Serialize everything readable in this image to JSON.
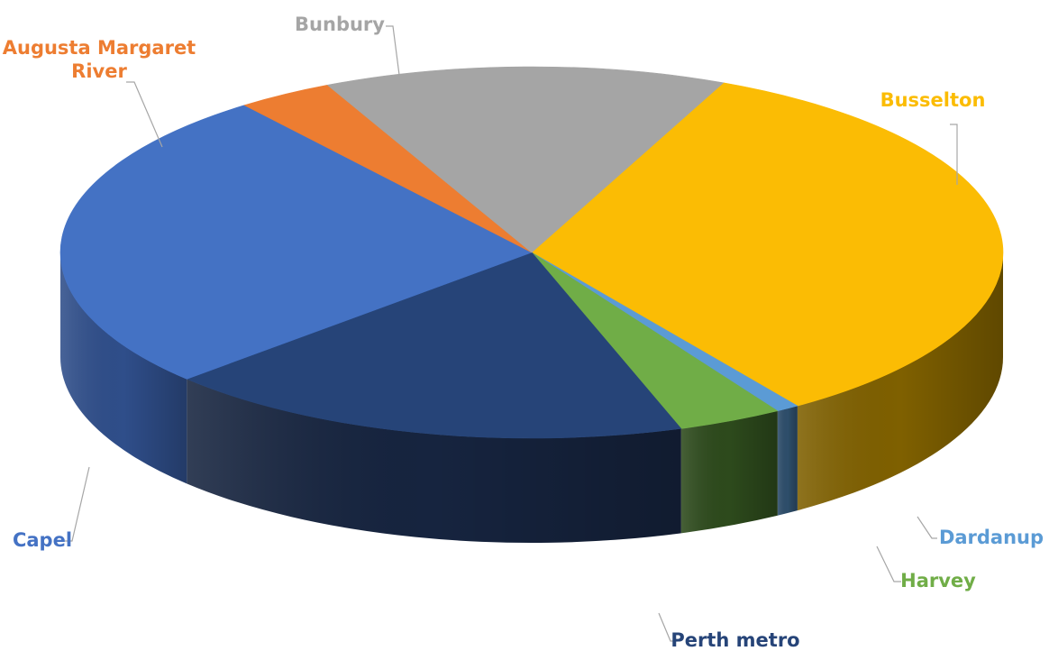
{
  "chart_data": {
    "type": "pie",
    "style": "3d",
    "start_angle_deg": -66,
    "direction": "clockwise",
    "legend": "none",
    "slices": [
      {
        "label": "Busselton",
        "value": 33.8,
        "color": "#FBBC04",
        "side_color": "#7F6000",
        "label_color": "#FBBC04"
      },
      {
        "label": "Dardanup",
        "value": 0.8,
        "color": "#5B9BD5",
        "side_color": "#2E4E6B",
        "label_color": "#5B9BD5"
      },
      {
        "label": "Harvey",
        "value": 3.6,
        "color": "#70AD47",
        "side_color": "#2D4A1C",
        "label_color": "#70AD47"
      },
      {
        "label": "Perth metro",
        "value": 18.2,
        "color": "#264478",
        "side_color": "#16243F",
        "label_color": "#264478"
      },
      {
        "label": "Capel",
        "value": 26.5,
        "color": "#4472C4",
        "side_color": "#2F4E8A",
        "label_color": "#4472C4"
      },
      {
        "label": "Augusta Margaret River",
        "value": 3.3,
        "color": "#ED7D31",
        "side_color": "#9A4F1B",
        "label_color": "#ED7D31"
      },
      {
        "label": "Bunbury",
        "value": 13.8,
        "color": "#A5A5A5",
        "side_color": "#6B6B6B",
        "label_color": "#A5A5A5"
      }
    ]
  }
}
